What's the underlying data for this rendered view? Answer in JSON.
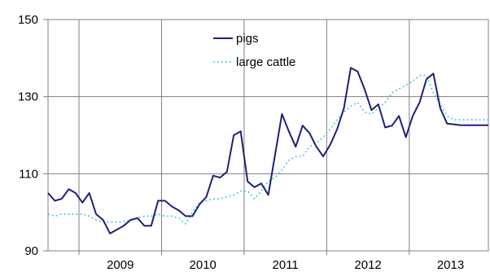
{
  "chart_data": {
    "type": "line",
    "title": "",
    "xlabel": "",
    "ylabel": "",
    "ylim": [
      90,
      150
    ],
    "yticks": [
      90,
      110,
      130,
      150
    ],
    "xlim": [
      2008.625,
      2013.958
    ],
    "xticks": [
      {
        "label": "2009",
        "x": 2009.5
      },
      {
        "label": "2010",
        "x": 2010.5
      },
      {
        "label": "2011",
        "x": 2011.5
      },
      {
        "label": "2012",
        "x": 2012.5
      },
      {
        "label": "2013",
        "x": 2013.5
      }
    ],
    "year_boundaries": [
      2009,
      2010,
      2011,
      2012,
      2013
    ],
    "grid": {
      "horizontal": true,
      "vertical": true
    },
    "legend": "top-center",
    "x": [
      2008.625,
      2008.708,
      2008.792,
      2008.875,
      2008.958,
      2009.042,
      2009.125,
      2009.208,
      2009.292,
      2009.375,
      2009.458,
      2009.542,
      2009.625,
      2009.708,
      2009.792,
      2009.875,
      2009.958,
      2010.042,
      2010.125,
      2010.208,
      2010.292,
      2010.375,
      2010.458,
      2010.542,
      2010.625,
      2010.708,
      2010.792,
      2010.875,
      2010.958,
      2011.042,
      2011.125,
      2011.208,
      2011.292,
      2011.375,
      2011.458,
      2011.542,
      2011.625,
      2011.708,
      2011.792,
      2011.875,
      2011.958,
      2012.042,
      2012.125,
      2012.208,
      2012.292,
      2012.375,
      2012.458,
      2012.542,
      2012.625,
      2012.708,
      2012.792,
      2012.875,
      2012.958,
      2013.042,
      2013.125,
      2013.208,
      2013.292,
      2013.375,
      2013.458,
      2013.542,
      2013.625,
      2013.708,
      2013.792,
      2013.875,
      2013.958
    ],
    "series": [
      {
        "name": "pigs",
        "color": "#1f1f7a",
        "style": "solid",
        "values": [
          105,
          103,
          103.5,
          106,
          105,
          102.5,
          105,
          99.5,
          98,
          94.5,
          95.5,
          96.5,
          98,
          98.5,
          96.5,
          96.5,
          103,
          103,
          101.5,
          100.5,
          99,
          99,
          102,
          104,
          109.5,
          109,
          110.5,
          120,
          121,
          108,
          106.5,
          107.5,
          104.5,
          115,
          125.5,
          121,
          117,
          122.5,
          120.5,
          117,
          114.5,
          117.5,
          121.5,
          127,
          137.5,
          136.5,
          132,
          126.5,
          128,
          122,
          122.5,
          125,
          119.5,
          125,
          128.5,
          134.5,
          136,
          127,
          123,
          122.8,
          122.6,
          122.6,
          122.6,
          122.6,
          122.6
        ]
      },
      {
        "name": "large cattle",
        "color": "#3ec6dc",
        "style": "dotted",
        "values": [
          99.5,
          99,
          99.5,
          99.5,
          99.5,
          99.5,
          99,
          98,
          97.5,
          97.5,
          97.5,
          97.5,
          98,
          98.5,
          99,
          99,
          99.5,
          99,
          99,
          98.5,
          97,
          100,
          102.5,
          103,
          103.5,
          103.5,
          104,
          104.5,
          105.5,
          105.5,
          103.5,
          105.5,
          108,
          109,
          111,
          113.5,
          114.5,
          114.5,
          117,
          118,
          119.5,
          121.5,
          124,
          126,
          127.5,
          128.5,
          126,
          125.5,
          127,
          128.5,
          131,
          132,
          133,
          134,
          135.5,
          135.5,
          131,
          128,
          125,
          124,
          124,
          124,
          124,
          124,
          124
        ]
      }
    ]
  }
}
